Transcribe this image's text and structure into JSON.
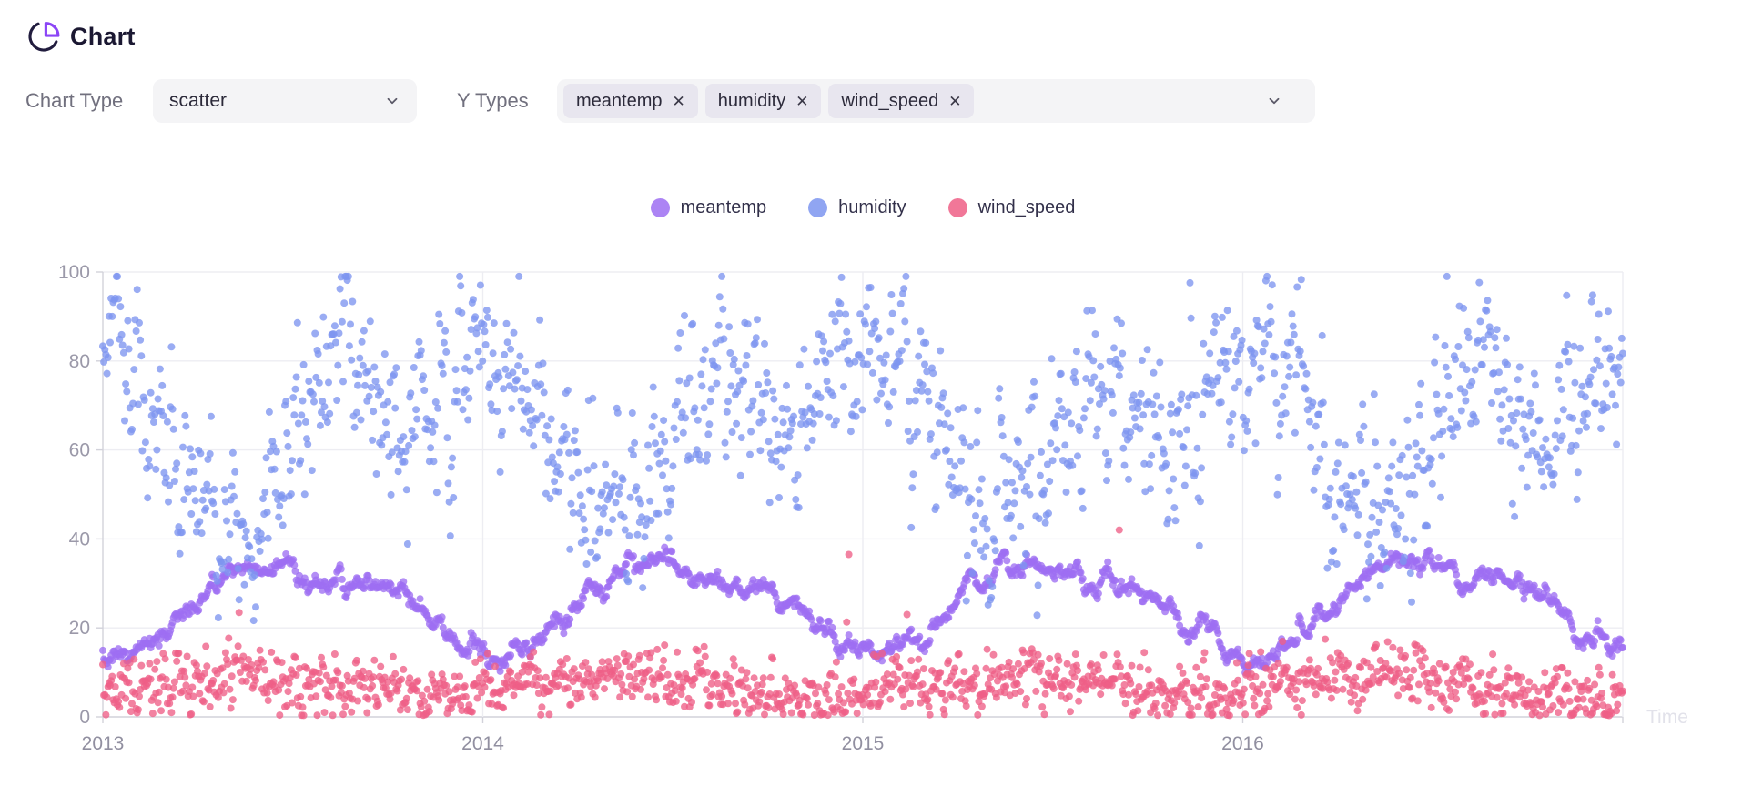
{
  "header": {
    "title": "Chart"
  },
  "controls": {
    "chart_type_label": "Chart Type",
    "chart_type_value": "scatter",
    "y_types_label": "Y Types",
    "y_types": [
      "meantemp",
      "humidity",
      "wind_speed"
    ],
    "remove_symbol": "✕"
  },
  "icons": {
    "header_icon": "pie-chart-icon",
    "header_icon_main_color": "#211c3e",
    "header_icon_slice_color": "#8b45f6",
    "chevron_color": "#5b5968"
  },
  "chart_data": {
    "type": "scatter",
    "title": "",
    "xlabel": "Time",
    "ylabel": "",
    "x_ticks": [
      "2013",
      "2014",
      "2015",
      "2016"
    ],
    "x_total_years": 4,
    "y_ticks": [
      0,
      20,
      40,
      60,
      80,
      100
    ],
    "ylim": [
      0,
      100
    ],
    "grid": true,
    "legend_position": "top-center",
    "points_per_series": 1462,
    "point_radius": 4,
    "point_opacity": 0.78,
    "axis_color": "#d2d2da",
    "grid_color": "#ededf2",
    "y_tick_color": "#9b99a9",
    "x_tick_color": "#918fa0",
    "time_label_color": "#e2e2ea",
    "series": [
      {
        "name": "meantemp",
        "color": "#9d6ef2",
        "monthly_means": [
          14,
          16.5,
          22.5,
          29,
          33.5,
          34.5,
          31.5,
          30.5,
          29.5,
          26.5,
          20.5,
          15
        ],
        "scatter_sd": 1.7,
        "smoothness": 0.88,
        "range": [
          8,
          40
        ],
        "outlier_prob": 0
      },
      {
        "name": "humidity",
        "color": "#7d95f0",
        "monthly_means": [
          82,
          75,
          61,
          46,
          43,
          53,
          72,
          80,
          74,
          62,
          67,
          80
        ],
        "scatter_sd": 10.5,
        "smoothness": 0.55,
        "range": [
          13,
          99
        ],
        "outlier_prob": 0
      },
      {
        "name": "wind_speed",
        "color": "#ee5f86",
        "monthly_means": [
          6,
          7.5,
          8,
          8.5,
          9.5,
          9.5,
          8.5,
          7,
          6.5,
          4.5,
          4.5,
          5
        ],
        "scatter_sd": 3.4,
        "smoothness": 0.3,
        "range": [
          0.3,
          42
        ],
        "outlier_prob": 0.004
      }
    ]
  }
}
